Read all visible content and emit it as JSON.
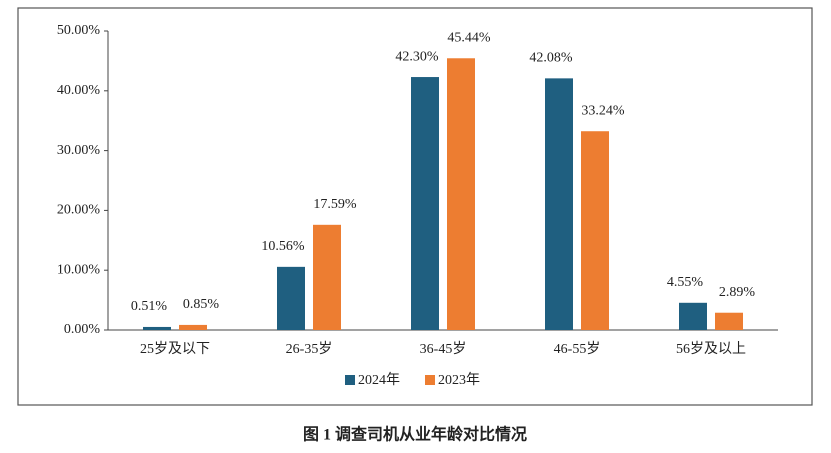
{
  "chart_data": {
    "type": "bar",
    "title": "图 1 调查司机从业年龄对比情况",
    "categories": [
      "25岁及以下",
      "26-35岁",
      "36-45岁",
      "46-55岁",
      "56岁及以上"
    ],
    "series": [
      {
        "name": "2024年",
        "color": "#1f5f80",
        "values": [
          0.51,
          10.56,
          42.3,
          42.08,
          4.55
        ],
        "value_labels": [
          "0.51%",
          "10.56%",
          "42.30%",
          "42.08%",
          "4.55%"
        ]
      },
      {
        "name": "2023年",
        "color": "#ed7d31",
        "values": [
          0.85,
          17.59,
          45.44,
          33.24,
          2.89
        ],
        "value_labels": [
          "0.85%",
          "17.59%",
          "45.44%",
          "33.24%",
          "2.89%"
        ]
      }
    ],
    "ylim": [
      0,
      50
    ],
    "yticks": [
      {
        "value": 0,
        "label": "0.00%"
      },
      {
        "value": 10,
        "label": "10.00%"
      },
      {
        "value": 20,
        "label": "20.00%"
      },
      {
        "value": 30,
        "label": "30.00%"
      },
      {
        "value": 40,
        "label": "40.00%"
      },
      {
        "value": 50,
        "label": "50.00%"
      }
    ],
    "legend": "bottom"
  }
}
